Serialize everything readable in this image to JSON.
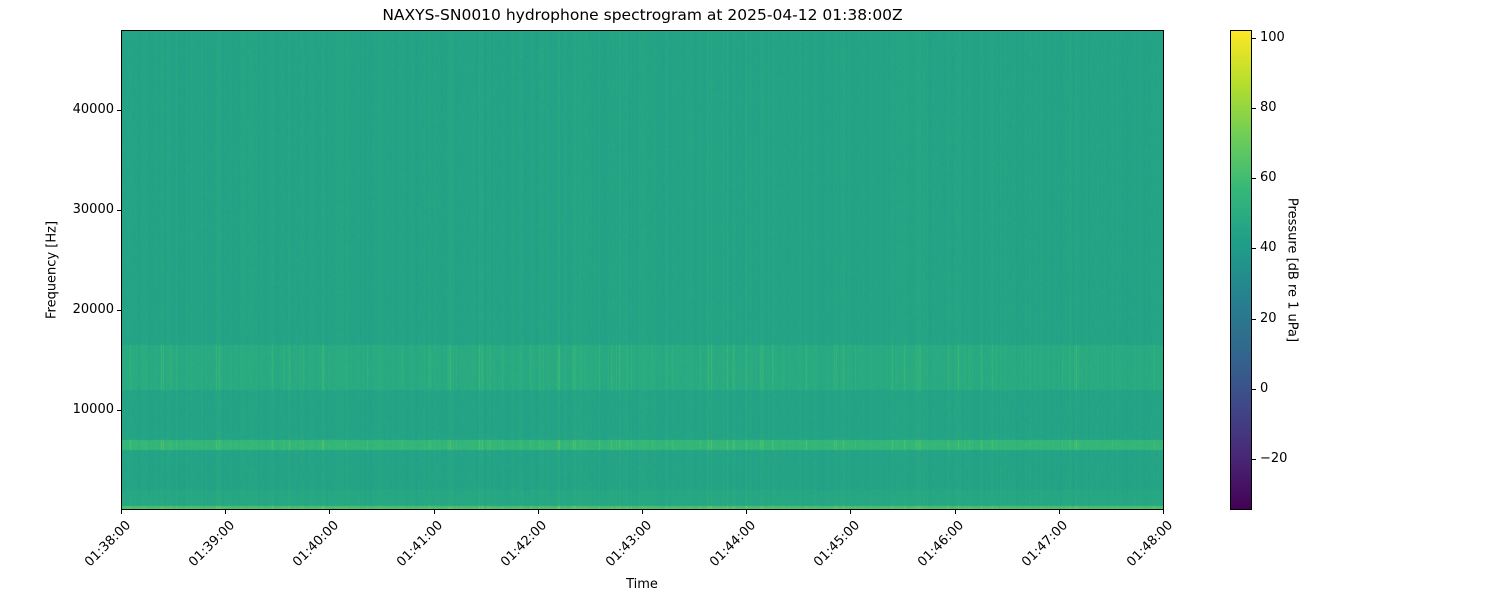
{
  "chart_data": {
    "type": "heatmap",
    "title": "NAXYS-SN0010 hydrophone spectrogram at 2025-04-12 01:38:00Z",
    "xlabel": "Time",
    "ylabel": "Frequency [Hz]",
    "colorbar_label": "Pressure [dB re 1 uPa]",
    "colormap": "viridis",
    "x_ticks": [
      "01:38:00",
      "01:39:00",
      "01:40:00",
      "01:41:00",
      "01:42:00",
      "01:43:00",
      "01:44:00",
      "01:45:00",
      "01:46:00",
      "01:47:00",
      "01:48:00"
    ],
    "xlim": [
      "01:38:00",
      "01:48:00"
    ],
    "y_ticks": [
      10000,
      20000,
      30000,
      40000
    ],
    "ylim": [
      0,
      48000
    ],
    "colorbar_ticks": [
      -20,
      0,
      20,
      40,
      60,
      80,
      100
    ],
    "clim": [
      -34.6,
      102.3
    ],
    "background_level_db": 45,
    "features": [
      {
        "freq_range_hz": [
          0,
          400
        ],
        "level_db": 62
      },
      {
        "freq_range_hz": [
          6000,
          7000
        ],
        "level_db": 62
      },
      {
        "freq_range_hz": [
          12000,
          16500
        ],
        "level_db": 55
      }
    ]
  }
}
